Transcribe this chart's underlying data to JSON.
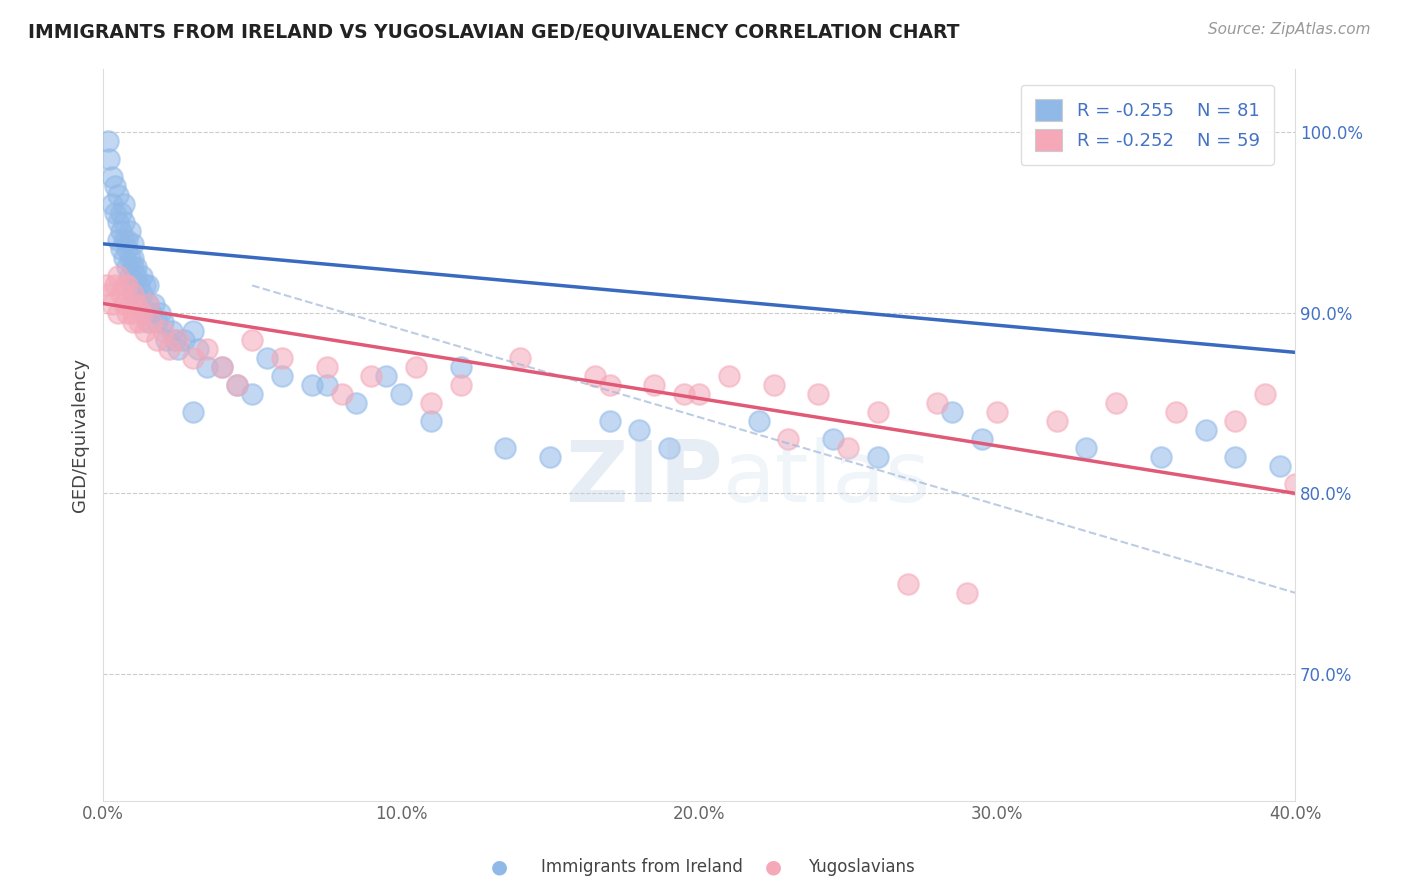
{
  "title": "IMMIGRANTS FROM IRELAND VS YUGOSLAVIAN GED/EQUIVALENCY CORRELATION CHART",
  "source_text": "Source: ZipAtlas.com",
  "xlabel_center": "Immigrants from Ireland",
  "xlabel_right": "Yugoslavians",
  "ylabel": "GED/Equivalency",
  "xlim": [
    0.0,
    40.0
  ],
  "ylim": [
    63.0,
    103.5
  ],
  "x_ticks": [
    0.0,
    10.0,
    20.0,
    30.0,
    40.0
  ],
  "x_tick_labels": [
    "0.0%",
    "10.0%",
    "20.0%",
    "30.0%",
    "40.0%"
  ],
  "y_ticks_right": [
    70.0,
    80.0,
    90.0,
    100.0
  ],
  "y_tick_labels_right": [
    "70.0%",
    "80.0%",
    "90.0%",
    "100.0%"
  ],
  "legend_r1": "R = -0.255",
  "legend_n1": "N = 81",
  "legend_r2": "R = -0.252",
  "legend_n2": "N = 59",
  "blue_color": "#91b9e8",
  "pink_color": "#f4a8b8",
  "line_blue": "#3a6abf",
  "line_pink": "#e05a78",
  "watermark_zip": "ZIP",
  "watermark_atlas": "atlas",
  "background_color": "#ffffff",
  "blue_trend_x0": 0.0,
  "blue_trend_y0": 93.8,
  "blue_trend_x1": 40.0,
  "blue_trend_y1": 87.8,
  "pink_trend_x0": 0.0,
  "pink_trend_y0": 90.5,
  "pink_trend_x1": 40.0,
  "pink_trend_y1": 80.0,
  "dash_trend_x0": 5.0,
  "dash_trend_y0": 91.5,
  "dash_trend_x1": 40.0,
  "dash_trend_y1": 74.5,
  "blue_scatter_x": [
    0.15,
    0.2,
    0.3,
    0.3,
    0.4,
    0.4,
    0.5,
    0.5,
    0.5,
    0.6,
    0.6,
    0.6,
    0.7,
    0.7,
    0.7,
    0.7,
    0.8,
    0.8,
    0.8,
    0.9,
    0.9,
    0.9,
    1.0,
    1.0,
    1.0,
    1.0,
    1.0,
    1.1,
    1.1,
    1.1,
    1.2,
    1.2,
    1.3,
    1.3,
    1.4,
    1.4,
    1.5,
    1.5,
    1.5,
    1.6,
    1.7,
    1.8,
    1.9,
    2.0,
    2.1,
    2.3,
    2.4,
    2.5,
    2.7,
    3.0,
    3.2,
    3.5,
    4.0,
    4.5,
    5.5,
    6.0,
    7.0,
    8.5,
    9.5,
    11.0,
    13.5,
    15.0,
    17.0,
    18.0,
    19.0,
    22.0,
    24.5,
    26.0,
    28.5,
    29.5,
    33.0,
    35.5,
    37.0,
    38.0,
    39.5,
    40.5,
    3.0,
    5.0,
    7.5,
    10.0,
    12.0
  ],
  "blue_scatter_y": [
    99.5,
    98.5,
    97.5,
    96.0,
    95.5,
    97.0,
    95.0,
    96.5,
    94.0,
    94.5,
    95.5,
    93.5,
    94.0,
    95.0,
    93.0,
    96.0,
    92.5,
    94.0,
    93.5,
    93.0,
    92.0,
    94.5,
    91.5,
    92.5,
    93.0,
    91.0,
    93.8,
    92.0,
    91.0,
    92.5,
    91.5,
    90.5,
    91.0,
    92.0,
    91.5,
    90.0,
    90.5,
    91.5,
    89.5,
    90.0,
    90.5,
    89.5,
    90.0,
    89.5,
    88.5,
    89.0,
    88.5,
    88.0,
    88.5,
    89.0,
    88.0,
    87.0,
    87.0,
    86.0,
    87.5,
    86.5,
    86.0,
    85.0,
    86.5,
    84.0,
    82.5,
    82.0,
    84.0,
    83.5,
    82.5,
    84.0,
    83.0,
    82.0,
    84.5,
    83.0,
    82.5,
    82.0,
    83.5,
    82.0,
    81.5,
    83.0,
    84.5,
    85.5,
    86.0,
    85.5,
    87.0
  ],
  "pink_scatter_x": [
    0.1,
    0.2,
    0.3,
    0.4,
    0.5,
    0.5,
    0.6,
    0.7,
    0.7,
    0.8,
    0.8,
    0.9,
    1.0,
    1.0,
    1.0,
    1.1,
    1.2,
    1.3,
    1.4,
    1.5,
    1.6,
    1.8,
    2.0,
    2.2,
    2.5,
    3.0,
    3.5,
    4.0,
    5.0,
    6.0,
    7.5,
    9.0,
    10.5,
    12.0,
    14.0,
    16.5,
    18.5,
    20.0,
    22.5,
    24.0,
    26.0,
    28.0,
    30.0,
    32.0,
    34.0,
    36.0,
    38.0,
    39.0,
    40.0,
    4.5,
    8.0,
    11.0,
    17.0,
    19.5,
    21.0,
    23.0,
    25.0,
    27.0,
    29.0
  ],
  "pink_scatter_y": [
    91.5,
    91.0,
    90.5,
    91.5,
    90.0,
    92.0,
    91.0,
    90.5,
    91.5,
    90.0,
    91.5,
    90.5,
    89.5,
    91.0,
    90.0,
    90.5,
    89.5,
    90.0,
    89.0,
    90.5,
    89.5,
    88.5,
    89.0,
    88.0,
    88.5,
    87.5,
    88.0,
    87.0,
    88.5,
    87.5,
    87.0,
    86.5,
    87.0,
    86.0,
    87.5,
    86.5,
    86.0,
    85.5,
    86.0,
    85.5,
    84.5,
    85.0,
    84.5,
    84.0,
    85.0,
    84.5,
    84.0,
    85.5,
    80.5,
    86.0,
    85.5,
    85.0,
    86.0,
    85.5,
    86.5,
    83.0,
    82.5,
    75.0,
    74.5
  ]
}
